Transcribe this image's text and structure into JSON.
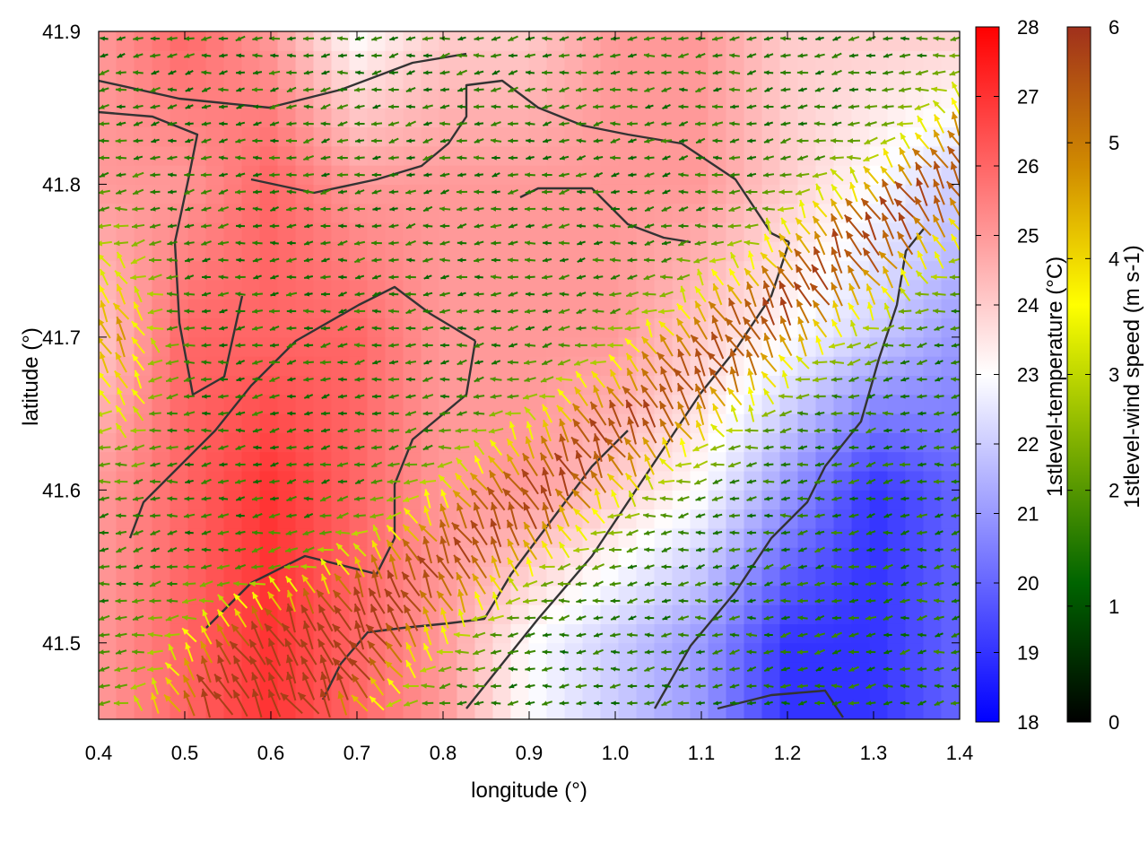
{
  "chart_data": {
    "type": "heatmap",
    "title": "",
    "xlabel": "longitude (°)",
    "ylabel": "latitude (°)",
    "xlim": [
      0.4,
      1.4
    ],
    "ylim": [
      41.45,
      41.9
    ],
    "x_ticks": [
      "0.4",
      "0.5",
      "0.6",
      "0.7",
      "0.8",
      "0.9",
      "1.0",
      "1.1",
      "1.2",
      "1.3",
      "1.4"
    ],
    "y_ticks": [
      "41.5",
      "41.6",
      "41.7",
      "41.8",
      "41.9"
    ],
    "grid": false,
    "colorbars": [
      {
        "label": "1stlevel-temperature (°C)",
        "range": [
          18,
          28
        ],
        "ticks": [
          "18",
          "19",
          "20",
          "21",
          "22",
          "23",
          "24",
          "25",
          "26",
          "27",
          "28"
        ],
        "colors": [
          "#0000ff",
          "#ffffff",
          "#ff0000"
        ]
      },
      {
        "label": "1stlevel-wind speed (m s-1)",
        "range": [
          0,
          6
        ],
        "ticks": [
          "0",
          "1",
          "2",
          "3",
          "4",
          "5",
          "6"
        ],
        "colors": [
          "#000000",
          "#006400",
          "#7fb000",
          "#ffff00",
          "#d08a00",
          "#a0301c"
        ]
      }
    ],
    "fields": [
      "temperature heatmap (°C)",
      "wind vectors colored by speed (m s-1)",
      "coastline/boundary contours"
    ],
    "series": [
      {
        "x": [
          0.4,
          0.5,
          0.6,
          0.7,
          0.8,
          0.9,
          1.0,
          1.1,
          1.2,
          1.3,
          1.4
        ],
        "y": [
          41.5,
          41.5,
          41.5,
          41.5,
          41.5,
          41.5,
          41.5,
          41.5,
          41.5,
          41.5,
          41.5
        ],
        "values": [
          25,
          26,
          27,
          26,
          25,
          23,
          22,
          21,
          19,
          19,
          20
        ]
      },
      {
        "x": [
          0.4,
          0.5,
          0.6,
          0.7,
          0.8,
          0.9,
          1.0,
          1.1,
          1.2,
          1.3,
          1.4
        ],
        "y": [
          41.6,
          41.6,
          41.6,
          41.6,
          41.6,
          41.6,
          41.6,
          41.6,
          41.6,
          41.6,
          41.6
        ],
        "values": [
          25,
          26,
          27,
          26,
          25,
          25,
          24,
          23,
          21,
          19,
          20
        ]
      },
      {
        "x": [
          0.4,
          0.5,
          0.6,
          0.7,
          0.8,
          0.9,
          1.0,
          1.1,
          1.2,
          1.3,
          1.4
        ],
        "y": [
          41.7,
          41.7,
          41.7,
          41.7,
          41.7,
          41.7,
          41.7,
          41.7,
          41.7,
          41.7,
          41.7
        ],
        "values": [
          24,
          26,
          26,
          26,
          25,
          25,
          25,
          24,
          23,
          22,
          21
        ]
      },
      {
        "x": [
          0.4,
          0.5,
          0.6,
          0.7,
          0.8,
          0.9,
          1.0,
          1.1,
          1.2,
          1.3,
          1.4
        ],
        "y": [
          41.8,
          41.8,
          41.8,
          41.8,
          41.8,
          41.8,
          41.8,
          41.8,
          41.8,
          41.8,
          41.8
        ],
        "values": [
          25,
          25,
          26,
          25,
          25,
          25,
          25,
          25,
          24,
          23,
          22
        ]
      },
      {
        "x": [
          0.4,
          0.5,
          0.6,
          0.7,
          0.8,
          0.9,
          1.0,
          1.1,
          1.2,
          1.3,
          1.4
        ],
        "y": [
          41.9,
          41.9,
          41.9,
          41.9,
          41.9,
          41.9,
          41.9,
          41.9,
          41.9,
          41.9,
          41.9
        ],
        "values": [
          25,
          26,
          25,
          23,
          24,
          24,
          25,
          25,
          24,
          24,
          24
        ]
      }
    ]
  }
}
